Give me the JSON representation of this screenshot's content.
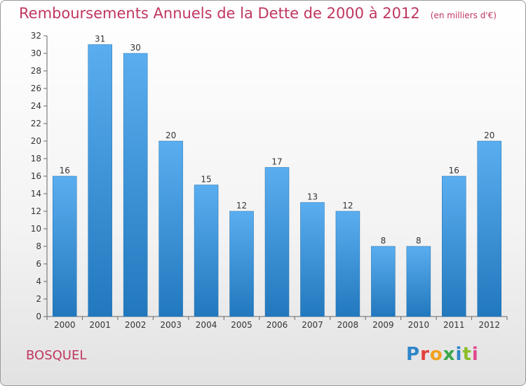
{
  "title": "Remboursements Annuels de la Dette de 2000 à 2012",
  "unit_label": "(en milliers d'€)",
  "commune": "BOSQUEL",
  "logo": {
    "text": "Proxiti",
    "letters": [
      "P",
      "r",
      "o",
      "x",
      "i",
      "t",
      "i"
    ]
  },
  "colors": {
    "title": "#c0365e",
    "bar_light": "#5aaef0",
    "bar_dark": "#2278bd"
  },
  "chart_data": {
    "type": "bar",
    "title": "Remboursements Annuels de la Dette de 2000 à 2012",
    "xlabel": "",
    "ylabel": "en milliers d'€",
    "categories": [
      "2000",
      "2001",
      "2002",
      "2003",
      "2004",
      "2005",
      "2006",
      "2007",
      "2008",
      "2009",
      "2010",
      "2011",
      "2012"
    ],
    "values": [
      16,
      31,
      30,
      20,
      15,
      12,
      17,
      13,
      12,
      8,
      8,
      16,
      20
    ],
    "ylim": [
      0,
      32
    ],
    "yticks": [
      0,
      2,
      4,
      6,
      8,
      10,
      12,
      14,
      16,
      18,
      20,
      22,
      24,
      26,
      28,
      30,
      32
    ],
    "grid": false,
    "legend": "none"
  }
}
